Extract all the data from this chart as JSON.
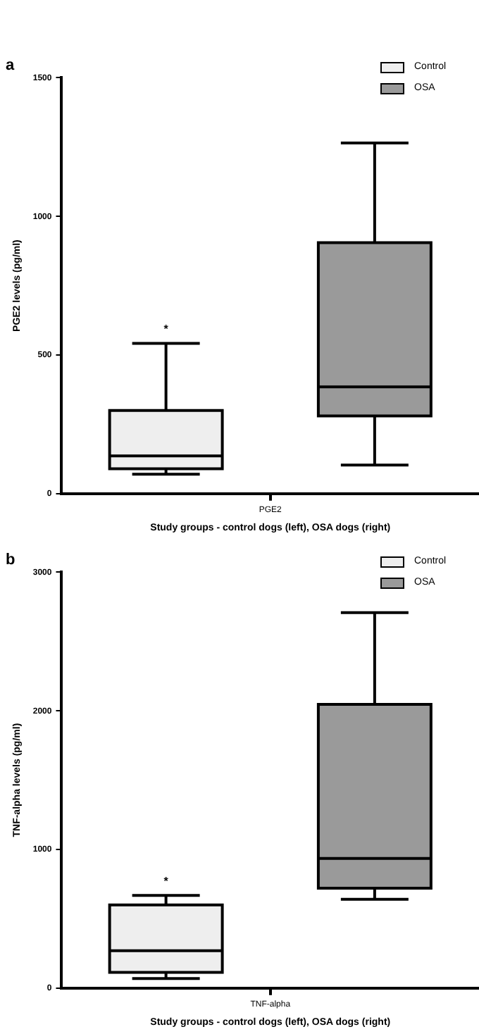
{
  "chart_data": [
    {
      "type": "box",
      "title": "a",
      "xlabel": "Study groups - control dogs (left), OSA dogs (right)",
      "ylabel": "PGE2 levels (pg/ml)",
      "categories": [
        "PGE2"
      ],
      "series": [
        {
          "name": "Control",
          "color": "#eeeeee",
          "boxes": [
            {
              "low": 70,
              "q1": 90,
              "median": 136,
              "q3": 300,
              "high": 542
            }
          ]
        },
        {
          "name": "OSA",
          "color": "#9a9a9a",
          "boxes": [
            {
              "low": 103,
              "q1": 280,
              "median": 385,
              "q3": 905,
              "high": 1265
            }
          ]
        }
      ],
      "ylim": [
        0,
        1500
      ],
      "yticks": [
        0,
        500,
        1000,
        1500
      ],
      "grid": false,
      "legend": "top right",
      "annotations": [
        "*"
      ]
    },
    {
      "type": "box",
      "title": "b",
      "xlabel": "Study groups - control dogs (left), OSA dogs (right)",
      "ylabel": "TNF-alpha levels (pg/ml)",
      "categories": [
        "TNF-alpha"
      ],
      "series": [
        {
          "name": "Control",
          "color": "#eeeeee",
          "boxes": [
            {
              "low": 69,
              "q1": 113,
              "median": 269,
              "q3": 600,
              "high": 669
            }
          ]
        },
        {
          "name": "OSA",
          "color": "#9a9a9a",
          "boxes": [
            {
              "low": 640,
              "q1": 720,
              "median": 935,
              "q3": 2047,
              "high": 2709
            }
          ]
        }
      ],
      "ylim": [
        0,
        3000
      ],
      "yticks": [
        0,
        1000,
        2000,
        3000
      ],
      "grid": false,
      "legend": "top right",
      "annotations": [
        "*"
      ]
    }
  ]
}
